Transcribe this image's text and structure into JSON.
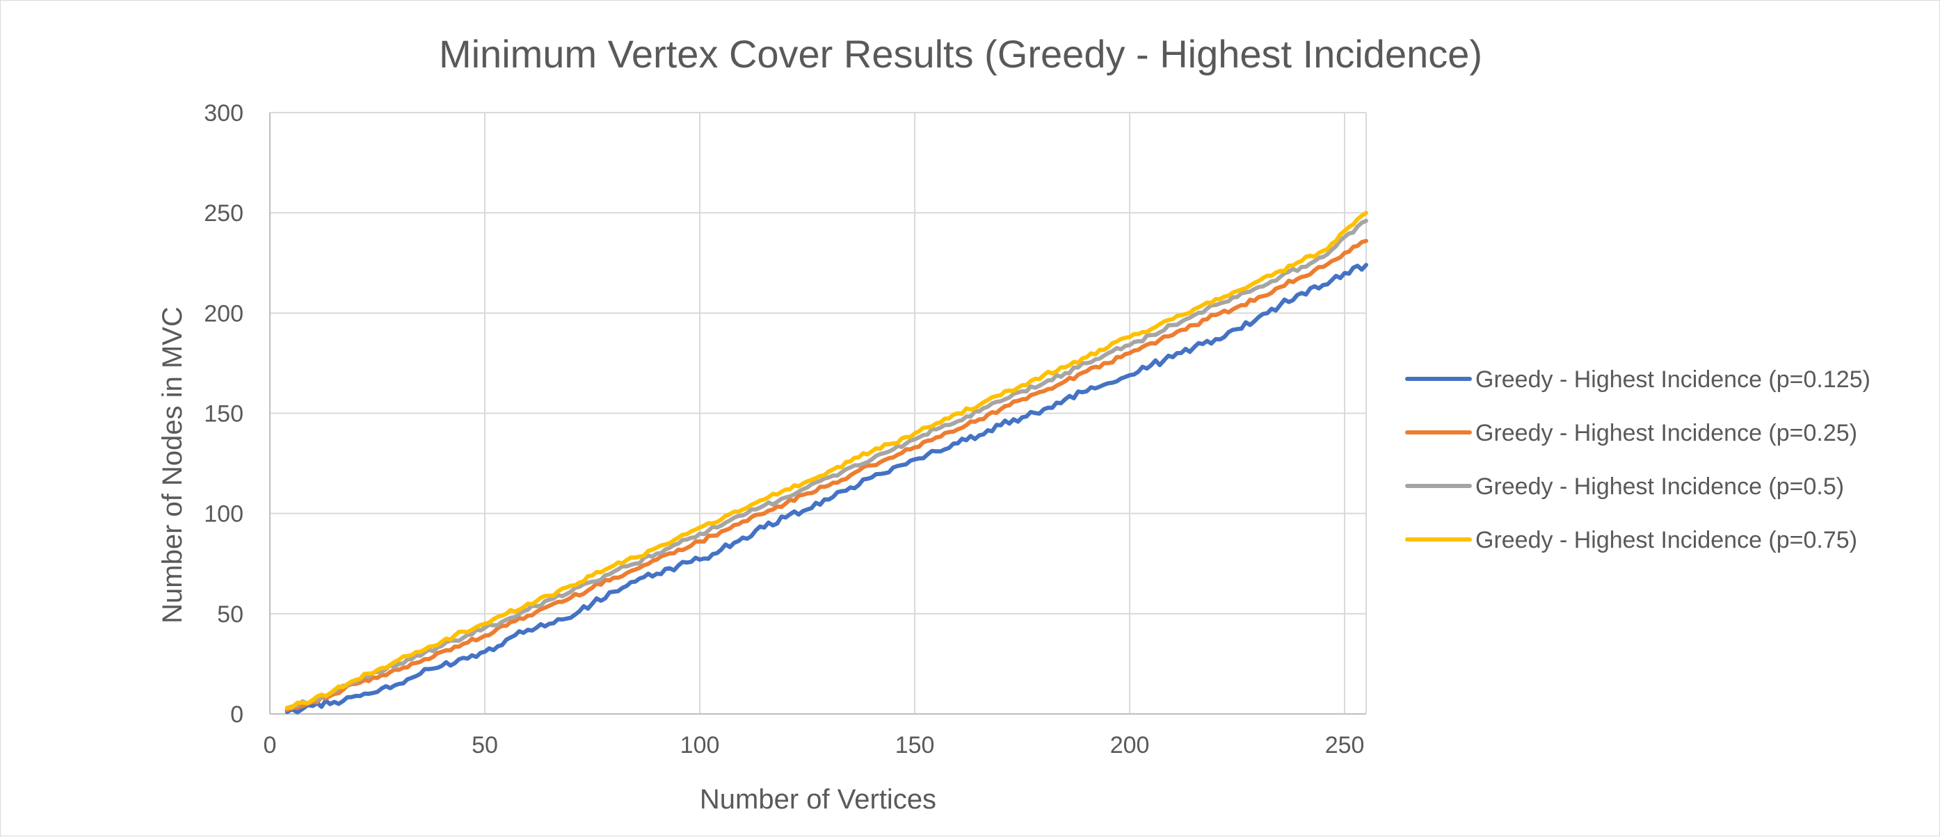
{
  "chart_data": {
    "type": "line",
    "title": "Minimum Vertex Cover Results (Greedy - Highest Incidence)",
    "xlabel": "Number of Vertices",
    "ylabel": "Number of Nodes in MVC",
    "xlim": [
      0,
      255
    ],
    "ylim": [
      0,
      300
    ],
    "xticks": [
      0,
      50,
      100,
      150,
      200,
      250
    ],
    "yticks": [
      0,
      50,
      100,
      150,
      200,
      250,
      300
    ],
    "grid": true,
    "legend_position": "right",
    "series": [
      {
        "name": "Greedy - Highest Incidence (p=0.125)",
        "color": "#4472c4",
        "x": [
          4,
          10,
          15,
          20,
          25,
          30,
          35,
          40,
          45,
          50,
          55,
          60,
          65,
          70,
          75,
          80,
          85,
          90,
          95,
          100,
          105,
          110,
          115,
          120,
          125,
          130,
          135,
          140,
          145,
          150,
          155,
          160,
          165,
          170,
          175,
          180,
          185,
          190,
          195,
          200,
          205,
          210,
          215,
          220,
          225,
          230,
          235,
          240,
          245,
          250,
          255
        ],
        "y": [
          1,
          4,
          6,
          9,
          11,
          15,
          20,
          24,
          28,
          31,
          37,
          42,
          45,
          48,
          55,
          61,
          66,
          70,
          74,
          77,
          82,
          88,
          93,
          98,
          102,
          107,
          113,
          118,
          123,
          127,
          131,
          135,
          139,
          144,
          148,
          152,
          157,
          161,
          165,
          169,
          174,
          178,
          183,
          187,
          192,
          198,
          204,
          210,
          214,
          220,
          224
        ]
      },
      {
        "name": "Greedy - Highest Incidence (p=0.25)",
        "color": "#ed7d31",
        "x": [
          4,
          10,
          15,
          20,
          25,
          30,
          35,
          40,
          45,
          50,
          55,
          60,
          65,
          70,
          75,
          80,
          85,
          90,
          95,
          100,
          105,
          110,
          115,
          120,
          125,
          130,
          135,
          140,
          145,
          150,
          155,
          160,
          165,
          170,
          175,
          180,
          185,
          190,
          195,
          200,
          205,
          210,
          215,
          220,
          225,
          230,
          235,
          240,
          245,
          250,
          255
        ],
        "y": [
          2,
          6,
          10,
          15,
          18,
          22,
          26,
          31,
          35,
          39,
          44,
          49,
          54,
          58,
          63,
          68,
          72,
          77,
          82,
          86,
          91,
          96,
          100,
          105,
          110,
          114,
          119,
          124,
          128,
          133,
          138,
          142,
          147,
          152,
          157,
          161,
          166,
          171,
          175,
          180,
          185,
          189,
          194,
          199,
          203,
          208,
          213,
          218,
          223,
          230,
          236
        ]
      },
      {
        "name": "Greedy - Highest Incidence (p=0.5)",
        "color": "#a5a5a5",
        "x": [
          4,
          10,
          15,
          20,
          25,
          30,
          35,
          40,
          45,
          50,
          55,
          60,
          65,
          70,
          75,
          80,
          85,
          90,
          95,
          100,
          105,
          110,
          115,
          120,
          125,
          130,
          135,
          140,
          145,
          150,
          155,
          160,
          165,
          170,
          175,
          180,
          185,
          190,
          195,
          200,
          205,
          210,
          215,
          220,
          225,
          230,
          235,
          240,
          245,
          250,
          255
        ],
        "y": [
          3,
          7,
          11,
          16,
          21,
          25,
          29,
          34,
          38,
          43,
          47,
          52,
          57,
          61,
          66,
          71,
          75,
          80,
          85,
          90,
          94,
          99,
          104,
          108,
          113,
          118,
          123,
          127,
          132,
          137,
          142,
          146,
          151,
          156,
          161,
          165,
          170,
          175,
          180,
          184,
          189,
          194,
          199,
          204,
          208,
          213,
          218,
          223,
          228,
          238,
          246
        ]
      },
      {
        "name": "Greedy - Highest Incidence (p=0.75)",
        "color": "#ffc000",
        "x": [
          4,
          10,
          15,
          20,
          25,
          30,
          35,
          40,
          45,
          50,
          55,
          60,
          65,
          70,
          75,
          80,
          85,
          90,
          95,
          100,
          105,
          110,
          115,
          120,
          125,
          130,
          135,
          140,
          145,
          150,
          155,
          160,
          165,
          170,
          175,
          180,
          185,
          190,
          195,
          200,
          205,
          210,
          215,
          220,
          225,
          230,
          235,
          240,
          245,
          250,
          255
        ],
        "y": [
          3,
          7,
          12,
          17,
          22,
          27,
          31,
          36,
          41,
          45,
          50,
          55,
          59,
          64,
          69,
          74,
          78,
          83,
          88,
          93,
          97,
          102,
          107,
          112,
          116,
          121,
          126,
          131,
          135,
          140,
          145,
          150,
          154,
          159,
          164,
          169,
          173,
          178,
          183,
          188,
          192,
          197,
          202,
          207,
          211,
          216,
          221,
          226,
          231,
          241,
          250
        ]
      }
    ]
  }
}
